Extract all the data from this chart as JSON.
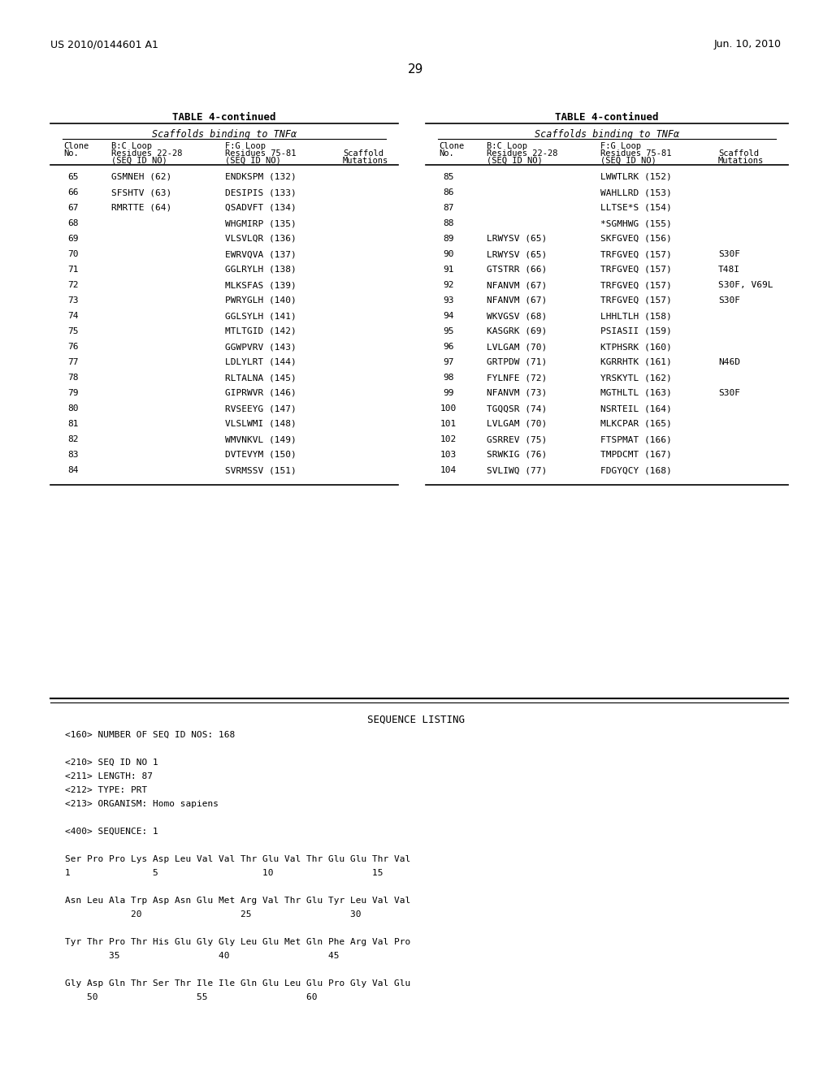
{
  "header_left": "US 2010/0144601 A1",
  "header_right": "Jun. 10, 2010",
  "page_number": "29",
  "table_title": "TABLE 4-continued",
  "table_subtitle": "Scaffolds binding to TNFα",
  "left_table_rows": [
    [
      "65",
      "GSMNEH (62)",
      "ENDKSPM (132)",
      ""
    ],
    [
      "66",
      "SFSHTV (63)",
      "DESIPIS (133)",
      ""
    ],
    [
      "67",
      "RMRTTE (64)",
      "QSADVFT (134)",
      ""
    ],
    [
      "68",
      "",
      "WHGMIRP (135)",
      ""
    ],
    [
      "69",
      "",
      "VLSVLQR (136)",
      ""
    ],
    [
      "70",
      "",
      "EWRVQVA (137)",
      ""
    ],
    [
      "71",
      "",
      "GGLRYLH (138)",
      ""
    ],
    [
      "72",
      "",
      "MLKSFAS (139)",
      ""
    ],
    [
      "73",
      "",
      "PWRYGLH (140)",
      ""
    ],
    [
      "74",
      "",
      "GGLSYLH (141)",
      ""
    ],
    [
      "75",
      "",
      "MTLTGID (142)",
      ""
    ],
    [
      "76",
      "",
      "GGWPVRV (143)",
      ""
    ],
    [
      "77",
      "",
      "LDLYLRT (144)",
      ""
    ],
    [
      "78",
      "",
      "RLTALNA (145)",
      ""
    ],
    [
      "79",
      "",
      "GIPRWVR (146)",
      ""
    ],
    [
      "80",
      "",
      "RVSEEYG (147)",
      ""
    ],
    [
      "81",
      "",
      "VLSLWMI (148)",
      ""
    ],
    [
      "82",
      "",
      "WMVNKVL (149)",
      ""
    ],
    [
      "83",
      "",
      "DVTEVYM (150)",
      ""
    ],
    [
      "84",
      "",
      "SVRMSSV (151)",
      ""
    ]
  ],
  "right_table_rows": [
    [
      "85",
      "",
      "LWWTLRK (152)",
      ""
    ],
    [
      "86",
      "",
      "WAHLLRD (153)",
      ""
    ],
    [
      "87",
      "",
      "LLTSE*S (154)",
      ""
    ],
    [
      "88",
      "",
      "*SGMHWG (155)",
      ""
    ],
    [
      "89",
      "LRWYSV (65)",
      "SKFGVEQ (156)",
      ""
    ],
    [
      "90",
      "LRWYSV (65)",
      "TRFGVEQ (157)",
      "S30F"
    ],
    [
      "91",
      "GTSTRR (66)",
      "TRFGVEQ (157)",
      "T48I"
    ],
    [
      "92",
      "NFANVM (67)",
      "TRFGVEQ (157)",
      "S30F, V69L"
    ],
    [
      "93",
      "NFANVM (67)",
      "TRFGVEQ (157)",
      "S30F"
    ],
    [
      "94",
      "WKVGSV (68)",
      "LHHLTLH (158)",
      ""
    ],
    [
      "95",
      "KASGRK (69)",
      "PSIASII (159)",
      ""
    ],
    [
      "96",
      "LVLGAM (70)",
      "KTPHSRK (160)",
      ""
    ],
    [
      "97",
      "GRTPDW (71)",
      "KGRRHTK (161)",
      "N46D"
    ],
    [
      "98",
      "FYLNFE (72)",
      "YRSKYTL (162)",
      ""
    ],
    [
      "99",
      "NFANVM (73)",
      "MGTHLTL (163)",
      "S30F"
    ],
    [
      "100",
      "TGQQSR (74)",
      "NSRTEIL (164)",
      ""
    ],
    [
      "101",
      "LVLGAM (70)",
      "MLKCPAR (165)",
      ""
    ],
    [
      "102",
      "GSRREV (75)",
      "FTSPMAT (166)",
      ""
    ],
    [
      "103",
      "SRWKIG (76)",
      "TMPDCMT (167)",
      ""
    ],
    [
      "104",
      "SVLIWQ (77)",
      "FDGYQCY (168)",
      ""
    ]
  ],
  "seq_listing_title": "SEQUENCE LISTING",
  "seq_listing_lines": [
    {
      "text": "<160> NUMBER OF SEQ ID NOS: 168",
      "x": 80,
      "indent": false
    },
    {
      "text": "",
      "x": 80,
      "indent": false
    },
    {
      "text": "<210> SEQ ID NO 1",
      "x": 80,
      "indent": false
    },
    {
      "text": "<211> LENGTH: 87",
      "x": 80,
      "indent": false
    },
    {
      "text": "<212> TYPE: PRT",
      "x": 80,
      "indent": false
    },
    {
      "text": "<213> ORGANISM: Homo sapiens",
      "x": 80,
      "indent": false
    },
    {
      "text": "",
      "x": 80,
      "indent": false
    },
    {
      "text": "<400> SEQUENCE: 1",
      "x": 80,
      "indent": false
    },
    {
      "text": "",
      "x": 80,
      "indent": false
    },
    {
      "text": "Ser Pro Pro Lys Asp Leu Val Val Thr Glu Val Thr Glu Glu Thr Val",
      "x": 80,
      "indent": false
    },
    {
      "text": "1               5                   10                  15",
      "x": 80,
      "indent": false
    },
    {
      "text": "",
      "x": 80,
      "indent": false
    },
    {
      "text": "Asn Leu Ala Trp Asp Asn Glu Met Arg Val Thr Glu Tyr Leu Val Val",
      "x": 80,
      "indent": false
    },
    {
      "text": "            20                  25                  30",
      "x": 80,
      "indent": false
    },
    {
      "text": "",
      "x": 80,
      "indent": false
    },
    {
      "text": "Tyr Thr Pro Thr His Glu Gly Gly Leu Glu Met Gln Phe Arg Val Pro",
      "x": 80,
      "indent": false
    },
    {
      "text": "        35                  40                  45",
      "x": 80,
      "indent": false
    },
    {
      "text": "",
      "x": 80,
      "indent": false
    },
    {
      "text": "Gly Asp Gln Thr Ser Thr Ile Ile Gln Glu Leu Glu Pro Gly Val Glu",
      "x": 80,
      "indent": false
    },
    {
      "text": "    50                  55                  60",
      "x": 80,
      "indent": false
    }
  ],
  "background_color": "#ffffff",
  "text_color": "#000000"
}
